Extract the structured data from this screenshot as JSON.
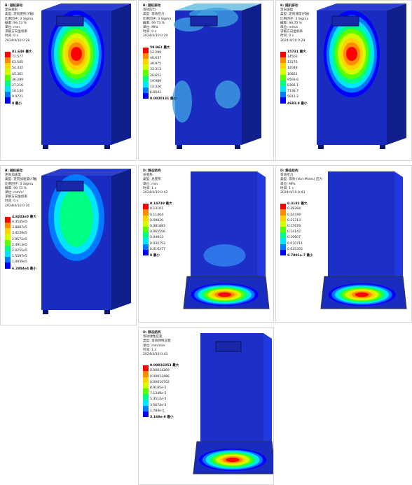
{
  "panels": [
    {
      "header": [
        "B: 随机振动",
        "定向变形",
        "类型: 定向变形(Y轴)",
        "比例因子: 3 Sigma",
        "概率: 99.73 %",
        "单位: mm",
        "求解方向坐标系",
        "时间: 0 s",
        "2024/4/10 0:28"
      ],
      "legend": [
        "81.649 最大",
        "72.577",
        "63.505",
        "54.432",
        "45.361",
        "36.289",
        "27.216",
        "18.144",
        "9.0721",
        "0 最小"
      ]
    },
    {
      "header": [
        "B: 随机振动",
        "等效应力",
        "类型: 等效应力",
        "比例因子: 3 Sigma",
        "概率: 99.73 %",
        "单位: MPa",
        "时间: 0 s",
        "2024/4/10 0:29"
      ],
      "legend": [
        "59.961 最大",
        "53.299",
        "46.637",
        "39.975",
        "33.313",
        "26.651",
        "19.989",
        "13.326",
        "6.6641",
        "0.0020131 最小"
      ]
    },
    {
      "header": [
        "B: 随机振动",
        "定向速度",
        "类型: 定向速度(Y轴)",
        "比例因子: 3 Sigma",
        "概率: 99.73 %",
        "单位: mm/s",
        "求解方向坐标系",
        "时间: 0 s",
        "2024/4/10 0:29"
      ],
      "legend": [
        "15731 最大",
        "14503",
        "13276",
        "12048",
        "10821",
        "9593.6",
        "8366.1",
        "7138.7",
        "5911.2",
        "4683.8 最小"
      ]
    },
    {
      "header": [
        "B: 随机振动",
        "定向加速度",
        "类型: 定向加速度(Y轴)",
        "比例因子: 3 Sigma",
        "概率: 99.73 %",
        "单位: mm/s²",
        "求解方向坐标系",
        "时间: 0 s",
        "2024/4/10 0:30"
      ],
      "legend": [
        "4.8203e5 最大",
        "4.3545e5",
        "3.8887e5",
        "3.4229e5",
        "2.9571e5",
        "2.4913e5",
        "2.0255e5",
        "1.5597e5",
        "1.0939e5",
        "6.2804e4 最小"
      ]
    },
    {
      "header": [
        "D: 静态结构",
        "总变形",
        "类型: 总变形",
        "单位: mm",
        "时间: 1 s",
        "2024/4/10 0:42"
      ],
      "legend": [
        "0.14739 最大",
        "0.13101",
        "0.11464",
        "0.09826",
        "0.081883",
        "0.065506",
        "0.04913",
        "0.032753",
        "0.016377",
        "0 最小"
      ]
    },
    {
      "header": [
        "D: 静态结构",
        "等效应力",
        "类型: 等效 (Von-Mises) 应力",
        "单位: MPa",
        "时间: 1 s",
        "2024/4/10 0:43"
      ],
      "legend": [
        "0.3182 最大",
        "0.28284",
        "0.24749",
        "0.21213",
        "0.17678",
        "0.14142",
        "0.10607",
        "0.070711",
        "0.035355",
        "9.7801e-7 最小"
      ]
    },
    {
      "header": [
        "D: 静态结构",
        "等效弹性应变",
        "类型: 等效弹性应变",
        "单位: mm/mm",
        "时间: 1 s",
        "2024/4/10 0:43"
      ],
      "legend": [
        "0.00016053 最大",
        "0.00014269",
        "0.00012486",
        "0.00010702",
        "8.9185e-5",
        "7.1348e-5",
        "5.3512e-5",
        "3.5674e-5",
        "1.784e-5",
        "3.169e-9 最小"
      ]
    }
  ]
}
